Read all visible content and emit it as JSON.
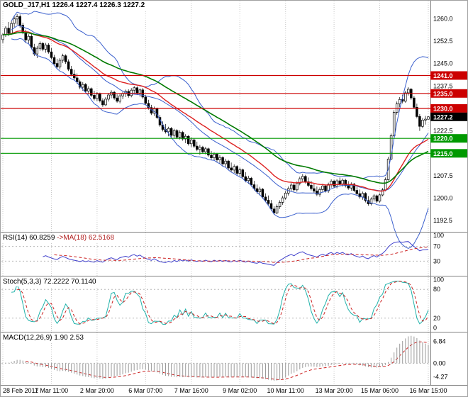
{
  "header": {
    "symbol_label": "GOLD_J17,H1",
    "ohlc_label": "1226.4 1227.4 1226.3 1227.2"
  },
  "chart_data": [
    {
      "type": "candlestick",
      "title": "GOLD_J17,H1",
      "timeframe": "H1",
      "x_labels": [
        "28 Feb 2017",
        "1 Mar 11:00",
        "2 Mar 20:00",
        "6 Mar 07:00",
        "7 Mar 16:00",
        "9 Mar 02:00",
        "10 Mar 11:00",
        "13 Mar 20:00",
        "15 Mar 06:00",
        "16 Mar 15:00"
      ],
      "x_label_indices": [
        0,
        17,
        33,
        50,
        66,
        83,
        99,
        116,
        132,
        149
      ],
      "ylim": [
        1189.0,
        1266.0
      ],
      "y_ticks": [
        "1260.0",
        "1252.5",
        "1245.0",
        "1237.5",
        "1230.0",
        "1222.5",
        "1215.0",
        "1207.5",
        "1200.0",
        "1192.5"
      ],
      "h_lines": [
        {
          "value": 1241.0,
          "label": "1241.0",
          "color": "#cc0000"
        },
        {
          "value": 1235.0,
          "label": "1235.0",
          "color": "#cc0000"
        },
        {
          "value": 1230.0,
          "label": "1230.0",
          "color": "#cc0000"
        },
        {
          "value": 1220.0,
          "label": "1220.0",
          "color": "#009900"
        },
        {
          "value": 1215.0,
          "label": "1215.0",
          "color": "#009900"
        }
      ],
      "current_price": {
        "value": 1227.2,
        "label": "1227.2",
        "color": "#000000"
      },
      "overlays": {
        "bollinger": {
          "period": 20,
          "deviation": 2,
          "color": "#3a5fcd"
        },
        "ma_fast": {
          "period": 28,
          "type": "ema",
          "color": "#dd2222"
        },
        "ma_slow": {
          "period": 50,
          "type": "ema",
          "color": "#007a00"
        }
      },
      "ohlc": [
        [
          1253.0,
          1255.2,
          1251.8,
          1254.6
        ],
        [
          1254.6,
          1257.5,
          1253.9,
          1256.8
        ],
        [
          1256.8,
          1258.9,
          1254.2,
          1255.1
        ],
        [
          1255.1,
          1259.3,
          1254.6,
          1258.4
        ],
        [
          1258.4,
          1260.8,
          1257.2,
          1259.9
        ],
        [
          1259.9,
          1261.5,
          1258.0,
          1260.7
        ],
        [
          1260.7,
          1261.4,
          1256.9,
          1257.8
        ],
        [
          1257.8,
          1258.6,
          1254.8,
          1255.4
        ],
        [
          1255.4,
          1256.3,
          1252.1,
          1252.9
        ],
        [
          1252.9,
          1254.8,
          1251.5,
          1254.1
        ],
        [
          1254.1,
          1254.9,
          1249.8,
          1250.4
        ],
        [
          1250.4,
          1251.6,
          1247.5,
          1248.2
        ],
        [
          1248.2,
          1250.9,
          1246.8,
          1250.1
        ],
        [
          1250.1,
          1252.4,
          1249.3,
          1251.7
        ],
        [
          1251.7,
          1252.2,
          1249.1,
          1249.8
        ],
        [
          1249.8,
          1251.9,
          1248.6,
          1251.2
        ],
        [
          1251.2,
          1251.8,
          1248.3,
          1248.9
        ],
        [
          1248.9,
          1250.2,
          1246.4,
          1247.0
        ],
        [
          1247.0,
          1247.9,
          1244.3,
          1245.0
        ],
        [
          1245.0,
          1246.6,
          1243.2,
          1243.9
        ],
        [
          1243.9,
          1246.8,
          1243.0,
          1246.1
        ],
        [
          1246.1,
          1248.3,
          1245.2,
          1247.6
        ],
        [
          1247.6,
          1248.1,
          1244.9,
          1245.6
        ],
        [
          1245.6,
          1246.4,
          1242.5,
          1243.1
        ],
        [
          1243.1,
          1244.2,
          1240.8,
          1241.4
        ],
        [
          1241.4,
          1242.9,
          1239.5,
          1240.2
        ],
        [
          1240.2,
          1241.7,
          1238.2,
          1238.9
        ],
        [
          1238.9,
          1239.6,
          1236.4,
          1237.1
        ],
        [
          1237.1,
          1238.8,
          1235.9,
          1238.0
        ],
        [
          1238.0,
          1238.5,
          1235.2,
          1235.8
        ],
        [
          1235.8,
          1237.4,
          1234.6,
          1236.6
        ],
        [
          1236.6,
          1237.0,
          1233.8,
          1234.4
        ],
        [
          1234.4,
          1235.9,
          1232.7,
          1233.3
        ],
        [
          1233.3,
          1235.5,
          1232.4,
          1234.8
        ],
        [
          1234.8,
          1235.3,
          1232.0,
          1232.6
        ],
        [
          1232.6,
          1233.4,
          1230.5,
          1231.2
        ],
        [
          1231.2,
          1233.8,
          1230.8,
          1233.1
        ],
        [
          1233.1,
          1235.2,
          1232.3,
          1234.5
        ],
        [
          1234.5,
          1236.1,
          1233.4,
          1235.4
        ],
        [
          1235.4,
          1235.9,
          1232.9,
          1233.5
        ],
        [
          1233.5,
          1234.7,
          1231.9,
          1232.4
        ],
        [
          1232.4,
          1234.9,
          1231.7,
          1234.2
        ],
        [
          1234.2,
          1235.6,
          1233.1,
          1234.9
        ],
        [
          1234.9,
          1236.3,
          1233.8,
          1235.7
        ],
        [
          1235.7,
          1236.4,
          1233.6,
          1234.3
        ],
        [
          1234.3,
          1236.8,
          1233.7,
          1236.1
        ],
        [
          1236.1,
          1237.5,
          1235.0,
          1236.9
        ],
        [
          1236.9,
          1237.4,
          1234.5,
          1235.1
        ],
        [
          1235.1,
          1236.7,
          1233.9,
          1236.2
        ],
        [
          1236.2,
          1236.8,
          1233.2,
          1233.8
        ],
        [
          1233.8,
          1234.5,
          1231.1,
          1231.7
        ],
        [
          1231.7,
          1232.9,
          1229.6,
          1230.3
        ],
        [
          1230.3,
          1231.2,
          1227.8,
          1228.4
        ],
        [
          1228.4,
          1230.6,
          1227.5,
          1229.9
        ],
        [
          1229.9,
          1230.3,
          1226.4,
          1227.0
        ],
        [
          1227.0,
          1227.8,
          1223.9,
          1224.5
        ],
        [
          1224.5,
          1225.7,
          1222.3,
          1223.0
        ],
        [
          1223.0,
          1224.8,
          1221.6,
          1222.2
        ],
        [
          1222.2,
          1223.9,
          1220.7,
          1223.3
        ],
        [
          1223.3,
          1223.8,
          1220.4,
          1221.0
        ],
        [
          1221.0,
          1223.2,
          1220.2,
          1222.6
        ],
        [
          1222.6,
          1223.1,
          1219.8,
          1220.4
        ],
        [
          1220.4,
          1222.7,
          1219.6,
          1222.0
        ],
        [
          1222.0,
          1222.5,
          1219.2,
          1219.8
        ],
        [
          1219.8,
          1221.4,
          1218.4,
          1220.7
        ],
        [
          1220.7,
          1221.1,
          1217.6,
          1218.2
        ],
        [
          1218.2,
          1220.3,
          1217.1,
          1219.5
        ],
        [
          1219.5,
          1219.9,
          1216.8,
          1217.4
        ],
        [
          1217.4,
          1218.9,
          1215.7,
          1216.3
        ],
        [
          1216.3,
          1217.8,
          1214.5,
          1217.0
        ],
        [
          1217.0,
          1217.5,
          1214.9,
          1215.5
        ],
        [
          1215.5,
          1217.2,
          1214.6,
          1216.5
        ],
        [
          1216.5,
          1216.9,
          1213.8,
          1214.4
        ],
        [
          1214.4,
          1215.8,
          1212.9,
          1213.5
        ],
        [
          1213.5,
          1215.3,
          1212.7,
          1214.7
        ],
        [
          1214.7,
          1215.1,
          1212.2,
          1212.8
        ],
        [
          1212.8,
          1214.4,
          1211.6,
          1213.6
        ],
        [
          1213.6,
          1214.0,
          1210.9,
          1211.5
        ],
        [
          1211.5,
          1213.2,
          1210.4,
          1212.4
        ],
        [
          1212.4,
          1212.8,
          1209.5,
          1210.1
        ],
        [
          1210.1,
          1211.9,
          1208.8,
          1209.4
        ],
        [
          1209.4,
          1211.3,
          1208.4,
          1210.6
        ],
        [
          1210.6,
          1211.0,
          1207.7,
          1208.3
        ],
        [
          1208.3,
          1210.2,
          1207.4,
          1209.5
        ],
        [
          1209.5,
          1209.9,
          1206.6,
          1207.2
        ],
        [
          1207.2,
          1208.7,
          1205.3,
          1205.9
        ],
        [
          1205.9,
          1207.5,
          1204.8,
          1206.7
        ],
        [
          1206.7,
          1207.1,
          1203.9,
          1204.5
        ],
        [
          1204.5,
          1205.8,
          1202.6,
          1203.2
        ],
        [
          1203.2,
          1204.6,
          1201.5,
          1202.1
        ],
        [
          1202.1,
          1203.8,
          1200.9,
          1203.0
        ],
        [
          1203.0,
          1203.4,
          1199.8,
          1200.4
        ],
        [
          1200.4,
          1201.6,
          1198.7,
          1199.3
        ],
        [
          1199.3,
          1200.9,
          1197.6,
          1198.2
        ],
        [
          1198.2,
          1199.4,
          1195.8,
          1196.4
        ],
        [
          1196.4,
          1197.3,
          1194.5,
          1195.1
        ],
        [
          1195.1,
          1197.9,
          1194.7,
          1197.2
        ],
        [
          1197.2,
          1199.3,
          1196.4,
          1198.6
        ],
        [
          1198.6,
          1200.8,
          1197.8,
          1200.1
        ],
        [
          1200.1,
          1202.4,
          1199.5,
          1201.7
        ],
        [
          1201.7,
          1203.9,
          1200.9,
          1203.2
        ],
        [
          1203.2,
          1205.1,
          1202.4,
          1204.4
        ],
        [
          1204.4,
          1205.3,
          1202.1,
          1202.8
        ],
        [
          1202.8,
          1205.6,
          1202.2,
          1205.0
        ],
        [
          1205.0,
          1207.2,
          1204.3,
          1206.5
        ],
        [
          1206.5,
          1208.1,
          1205.4,
          1207.3
        ],
        [
          1207.3,
          1207.8,
          1204.9,
          1205.5
        ],
        [
          1205.5,
          1206.9,
          1203.7,
          1204.3
        ],
        [
          1204.3,
          1205.8,
          1202.6,
          1203.2
        ],
        [
          1203.2,
          1204.7,
          1201.8,
          1202.4
        ],
        [
          1202.4,
          1203.9,
          1200.7,
          1201.3
        ],
        [
          1201.3,
          1203.6,
          1200.5,
          1202.9
        ],
        [
          1202.9,
          1204.8,
          1202.1,
          1204.1
        ],
        [
          1204.1,
          1204.6,
          1201.9,
          1202.5
        ],
        [
          1202.5,
          1205.2,
          1201.8,
          1204.6
        ],
        [
          1204.6,
          1206.3,
          1203.5,
          1205.7
        ],
        [
          1205.7,
          1206.1,
          1203.4,
          1204.0
        ],
        [
          1204.0,
          1206.4,
          1203.3,
          1205.8
        ],
        [
          1205.8,
          1206.9,
          1204.2,
          1204.8
        ],
        [
          1204.8,
          1206.6,
          1203.9,
          1206.0
        ],
        [
          1206.0,
          1206.5,
          1203.6,
          1204.2
        ],
        [
          1204.2,
          1205.7,
          1202.8,
          1203.4
        ],
        [
          1203.4,
          1205.3,
          1202.5,
          1204.7
        ],
        [
          1204.7,
          1205.1,
          1202.0,
          1202.6
        ],
        [
          1202.6,
          1203.8,
          1200.9,
          1201.5
        ],
        [
          1201.5,
          1202.9,
          1199.8,
          1200.4
        ],
        [
          1200.4,
          1202.2,
          1199.5,
          1201.6
        ],
        [
          1201.6,
          1202.0,
          1198.6,
          1199.2
        ],
        [
          1199.2,
          1200.7,
          1197.5,
          1198.1
        ],
        [
          1198.1,
          1200.3,
          1197.6,
          1199.7
        ],
        [
          1199.7,
          1201.4,
          1198.9,
          1200.8
        ],
        [
          1200.8,
          1201.2,
          1198.4,
          1199.0
        ],
        [
          1199.0,
          1201.6,
          1198.5,
          1201.1
        ],
        [
          1201.1,
          1203.4,
          1200.6,
          1202.8
        ],
        [
          1202.8,
          1206.9,
          1202.3,
          1206.2
        ],
        [
          1206.2,
          1213.8,
          1205.9,
          1213.1
        ],
        [
          1213.1,
          1221.6,
          1212.8,
          1220.9
        ],
        [
          1220.9,
          1229.4,
          1220.5,
          1228.7
        ],
        [
          1228.7,
          1232.3,
          1227.9,
          1231.5
        ],
        [
          1231.5,
          1233.8,
          1230.4,
          1233.0
        ],
        [
          1233.0,
          1234.6,
          1231.7,
          1232.4
        ],
        [
          1232.4,
          1235.9,
          1231.9,
          1235.2
        ],
        [
          1235.2,
          1237.1,
          1234.3,
          1236.4
        ],
        [
          1236.4,
          1236.8,
          1232.9,
          1233.5
        ],
        [
          1233.5,
          1234.2,
          1229.8,
          1230.4
        ],
        [
          1230.4,
          1231.6,
          1226.7,
          1227.3
        ],
        [
          1227.3,
          1228.1,
          1222.5,
          1224.0
        ],
        [
          1224.0,
          1226.8,
          1223.4,
          1226.1
        ],
        [
          1226.1,
          1227.5,
          1224.6,
          1226.4
        ],
        [
          1226.4,
          1227.4,
          1226.3,
          1227.2
        ]
      ]
    },
    {
      "type": "line",
      "name": "RSI",
      "label": "RSI(14) 60.8259",
      "ma_label": "->MA(18) 62.5168",
      "period": 14,
      "ma_period": 18,
      "last_value": 60.8259,
      "ma_last_value": 62.5168,
      "ylim": [
        0,
        100
      ],
      "y_ticks": [
        "100",
        "70",
        "30"
      ],
      "levels": [
        70,
        30
      ],
      "line_color": "#4040cc",
      "ma_color": "#cc2222"
    },
    {
      "type": "line",
      "name": "Stochastic",
      "label": "Stoch(5,3,3) 72.2222 70.1140",
      "k_period": 5,
      "slowing": 3,
      "d_period": 3,
      "last_k": 72.2222,
      "last_d": 70.114,
      "ylim": [
        0,
        100
      ],
      "y_ticks": [
        "100",
        "80",
        "20",
        "0"
      ],
      "levels": [
        80,
        20
      ],
      "k_color": "#20b2aa",
      "d_color": "#cc2222"
    },
    {
      "type": "bar",
      "name": "MACD",
      "label": "MACD(12,26,9) 1.90 2.53",
      "fast": 12,
      "slow": 26,
      "signal": 9,
      "last_macd": 1.9,
      "last_signal": 2.53,
      "y_ticks": [
        "6.84",
        "0.00",
        "-4.27"
      ],
      "histogram_color": "#9a9a9a",
      "signal_color": "#cc2222"
    }
  ]
}
